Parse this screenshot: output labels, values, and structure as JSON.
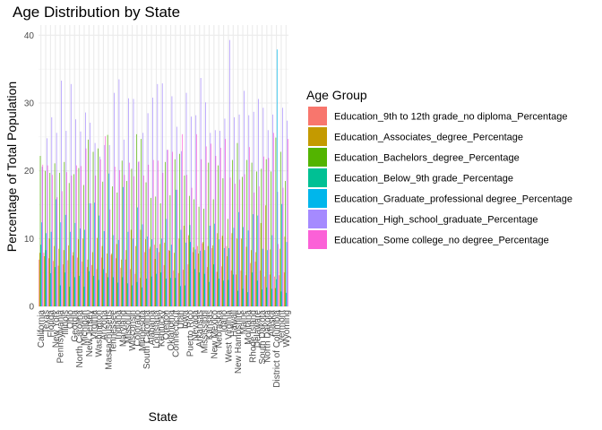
{
  "chart_data": {
    "type": "bar",
    "title": "Age Distribution by State",
    "xlabel": "State",
    "ylabel": "Percentage of Total Population",
    "ylim": [
      0,
      41.5
    ],
    "y_ticks": [
      0,
      10,
      20,
      30,
      40
    ],
    "grid": true,
    "legend_position": "right",
    "legend_title": "Age Group",
    "categories": [
      "California",
      "Texas",
      "Florida",
      "New York",
      "Pennsylvania",
      "Illinois",
      "Ohio",
      "Georgia",
      "North Carolina",
      "Michigan",
      "New Jersey",
      "Virginia",
      "Washington",
      "Arizona",
      "Massachusetts",
      "Tennessee",
      "Indiana",
      "Maryland",
      "Missouri",
      "Wisconsin",
      "Colorado",
      "Minnesota",
      "South Carolina",
      "Alabama",
      "Louisiana",
      "Kentucky",
      "Oregon",
      "Oklahoma",
      "Connecticut",
      "Utah",
      "Iowa",
      "Puerto Rico",
      "Nevada",
      "Arkansas",
      "Mississippi",
      "Kansas",
      "New Mexico",
      "Nebraska",
      "Idaho",
      "West Virginia",
      "Hawaii",
      "New Hampshire",
      "Maine",
      "Montana",
      "Rhode Island",
      "Delaware",
      "South Dakota",
      "North Dakota",
      "Alaska",
      "District of Columbia",
      "Vermont",
      "Wyoming"
    ],
    "series": [
      {
        "name": "Education_9th to 12th grade_no diploma_Percentage",
        "color": "#F8766D",
        "values": [
          6.9,
          7.9,
          7.1,
          6.7,
          6.0,
          6.2,
          6.8,
          7.5,
          7.2,
          6.6,
          5.8,
          6.1,
          5.5,
          7.2,
          4.9,
          7.6,
          7.1,
          5.7,
          6.9,
          5.5,
          4.8,
          4.2,
          8.0,
          8.5,
          9.1,
          8.0,
          6.1,
          8.3,
          5.3,
          4.9,
          5.4,
          6.2,
          8.0,
          8.9,
          9.3,
          5.8,
          8.6,
          5.1,
          5.9,
          8.9,
          5.3,
          4.7,
          5.3,
          4.6,
          6.4,
          6.6,
          5.3,
          4.4,
          4.7,
          4.4,
          4.6,
          5.0
        ]
      },
      {
        "name": "Education_Associates_degree_Percentage",
        "color": "#C49A00",
        "values": [
          7.9,
          7.4,
          10.0,
          8.9,
          8.5,
          8.3,
          9.0,
          8.0,
          9.9,
          10.0,
          6.9,
          8.0,
          10.1,
          8.9,
          7.8,
          7.8,
          9.2,
          6.9,
          8.3,
          11.3,
          8.9,
          11.3,
          9.9,
          8.8,
          7.0,
          9.2,
          9.4,
          8.2,
          7.9,
          10.0,
          11.9,
          10.5,
          8.7,
          7.8,
          9.5,
          8.9,
          9.0,
          10.8,
          10.4,
          7.4,
          10.8,
          10.0,
          10.0,
          8.8,
          8.3,
          8.0,
          12.3,
          14.9,
          8.4,
          2.7,
          8.5,
          10.3
        ]
      },
      {
        "name": "Education_Bachelors_degree_Percentage",
        "color": "#53B400",
        "values": [
          22.2,
          20.0,
          19.7,
          21.1,
          19.7,
          21.3,
          18.2,
          19.5,
          20.4,
          17.9,
          24.6,
          22.8,
          23.3,
          18.4,
          25.3,
          17.7,
          16.8,
          21.5,
          18.5,
          20.3,
          25.4,
          24.7,
          18.3,
          16.0,
          16.2,
          15.2,
          21.3,
          16.4,
          21.7,
          22.5,
          19.3,
          16.3,
          15.8,
          14.7,
          14.4,
          21.2,
          15.8,
          20.8,
          18.9,
          12.9,
          21.6,
          24.1,
          19.1,
          21.6,
          21.2,
          19.9,
          20.3,
          21.7,
          19.9,
          24.9,
          22.8,
          18.5
        ]
      },
      {
        "name": "Education_Below_9th grade_Percentage",
        "color": "#00C094",
        "values": [
          9.1,
          8.3,
          4.9,
          5.8,
          3.1,
          5.0,
          2.9,
          4.3,
          4.5,
          2.9,
          5.2,
          4.5,
          3.9,
          5.5,
          4.3,
          4.3,
          3.5,
          4.3,
          3.4,
          3.1,
          3.6,
          2.8,
          4.1,
          4.4,
          4.8,
          5.0,
          4.1,
          4.2,
          4.2,
          3.0,
          3.1,
          12.0,
          5.5,
          5.0,
          4.8,
          3.6,
          6.2,
          4.1,
          3.8,
          3.9,
          4.7,
          2.3,
          2.6,
          2.1,
          5.0,
          3.8,
          2.5,
          2.8,
          2.6,
          4.0,
          2.2,
          2.0
        ]
      },
      {
        "name": "Education_Graduate_professional degree_Percentage",
        "color": "#00B6EB",
        "values": [
          12.4,
          10.8,
          11.0,
          15.8,
          12.4,
          13.5,
          11.0,
          12.3,
          11.5,
          11.3,
          15.2,
          15.3,
          13.4,
          11.1,
          19.6,
          10.5,
          9.8,
          17.6,
          11.0,
          10.0,
          14.6,
          12.1,
          10.3,
          9.9,
          8.6,
          10.0,
          12.9,
          9.1,
          17.2,
          11.3,
          9.4,
          9.5,
          8.4,
          8.2,
          8.3,
          11.9,
          12.2,
          9.9,
          8.6,
          8.6,
          11.6,
          13.9,
          11.7,
          11.2,
          13.6,
          13.4,
          8.5,
          8.3,
          10.5,
          37.9,
          15.1,
          9.5
        ]
      },
      {
        "name": "Education_High_school_graduate_Percentage",
        "color": "#A58AFF",
        "values": [
          20.6,
          24.8,
          27.9,
          25.6,
          33.3,
          25.9,
          32.8,
          27.6,
          25.8,
          28.6,
          27.1,
          24.1,
          22.1,
          23.8,
          23.8,
          31.5,
          33.5,
          24.6,
          30.7,
          30.6,
          21.3,
          25.6,
          28.5,
          30.8,
          32.8,
          32.9,
          23.1,
          31.0,
          26.5,
          22.9,
          31.5,
          28.0,
          28.2,
          33.7,
          30.1,
          25.6,
          26.0,
          25.9,
          27.7,
          39.3,
          27.9,
          28.3,
          31.8,
          28.2,
          28.7,
          30.6,
          29.3,
          26.0,
          28.3,
          16.9,
          29.3,
          27.4
        ]
      },
      {
        "name": "Education_Some college_no degree_Percentage",
        "color": "#FB61D7",
        "values": [
          20.9,
          20.8,
          19.4,
          16.1,
          17.0,
          19.8,
          19.3,
          20.8,
          20.7,
          23.3,
          15.2,
          19.3,
          21.7,
          25.1,
          14.3,
          20.6,
          20.1,
          19.4,
          21.2,
          19.2,
          21.4,
          19.3,
          20.9,
          21.6,
          21.5,
          19.7,
          23.1,
          22.8,
          17.2,
          25.4,
          19.4,
          17.5,
          25.4,
          21.7,
          23.6,
          24.0,
          22.2,
          23.4,
          24.7,
          19.0,
          18.1,
          18.7,
          19.5,
          23.5,
          16.8,
          17.7,
          22.1,
          21.9,
          25.6,
          9.2,
          17.5,
          24.7
        ]
      }
    ]
  }
}
